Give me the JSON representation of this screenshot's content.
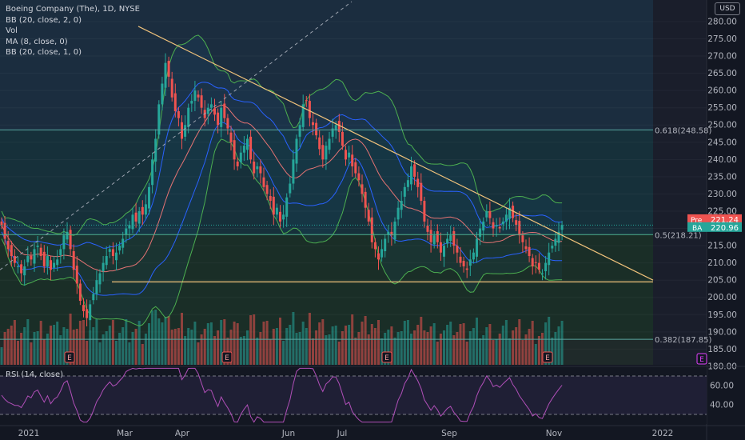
{
  "legend": {
    "title": "Boeing Company (The), 1D, NYSE",
    "studies": [
      "BB (20, close, 2, 0)",
      "Vol",
      "MA (8, close, 0)",
      "BB (20, close, 1, 0)"
    ]
  },
  "currency_button": "USD",
  "chart_data": {
    "type": "candlestick",
    "instrument": "Boeing Company (The)",
    "interval": "1D",
    "exchange": "NYSE",
    "currency": "USD",
    "ylim": [
      176,
      284
    ],
    "y_ticks": [
      180,
      185,
      190,
      195,
      200,
      205,
      210,
      215,
      220,
      225,
      230,
      235,
      240,
      245,
      250,
      255,
      260,
      265,
      270,
      275,
      280
    ],
    "x_ticks": [
      "2021",
      "Mar",
      "Apr",
      "Jun",
      "Jul",
      "Sep",
      "Nov",
      "2022"
    ],
    "fib_levels": [
      {
        "label": "0.618(248.58)",
        "value": 248.58
      },
      {
        "label": "0.5(218.21)",
        "value": 218.21
      },
      {
        "label": "0.382(187.85)",
        "value": 187.85
      }
    ],
    "price_labels": [
      {
        "name": "Pre",
        "value": "221.24"
      },
      {
        "name": "BA",
        "value": "220.96"
      }
    ],
    "event_markers": [
      "E",
      "E",
      "E",
      "E"
    ],
    "descending_trendline": {
      "from": {
        "date": "2021-02-26",
        "price": 278.6
      },
      "to": {
        "date": "2021-12-22",
        "price": 205
      }
    },
    "support_line": 204.5,
    "rsi": {
      "label": "RSI (14, close)",
      "ticks": [
        60,
        40
      ],
      "upper_band": 70,
      "lower_band": 30,
      "ylim": [
        20,
        80
      ]
    },
    "closes": [
      221,
      217,
      214,
      212,
      210,
      209,
      207,
      209,
      212,
      211,
      214,
      215,
      212,
      209,
      212,
      208,
      210,
      211,
      214,
      218,
      219,
      214,
      208,
      204,
      199,
      196,
      194,
      198,
      201,
      205,
      207,
      210,
      212,
      214,
      212,
      213,
      215,
      217,
      220,
      221,
      224,
      222,
      225,
      224,
      227,
      232,
      240,
      246,
      256,
      262,
      268,
      264,
      258,
      254,
      252,
      246,
      250,
      255,
      257,
      260,
      258,
      255,
      252,
      255,
      256,
      253,
      250,
      255,
      252,
      249,
      245,
      240,
      238,
      242,
      244,
      246,
      240,
      236,
      238,
      236,
      232,
      230,
      228,
      224,
      226,
      222,
      224,
      229,
      233,
      240,
      246,
      250,
      256,
      257,
      252,
      250,
      247,
      243,
      240,
      244,
      246,
      249,
      250,
      248,
      244,
      240,
      242,
      238,
      236,
      234,
      230,
      226,
      222,
      216,
      214,
      211,
      214,
      217,
      219,
      218,
      222,
      226,
      228,
      232,
      234,
      238,
      235,
      232,
      228,
      222,
      219,
      216,
      218,
      216,
      213,
      215,
      217,
      218,
      215,
      213,
      210,
      209,
      208,
      211,
      213,
      217,
      220,
      222,
      225,
      223,
      220,
      221,
      220,
      222,
      224,
      226,
      223,
      221,
      218,
      216,
      214,
      212,
      209,
      210,
      208,
      207,
      210,
      213,
      215,
      217,
      219,
      221
    ],
    "volume_ticks": [],
    "current_price": 220.96
  }
}
